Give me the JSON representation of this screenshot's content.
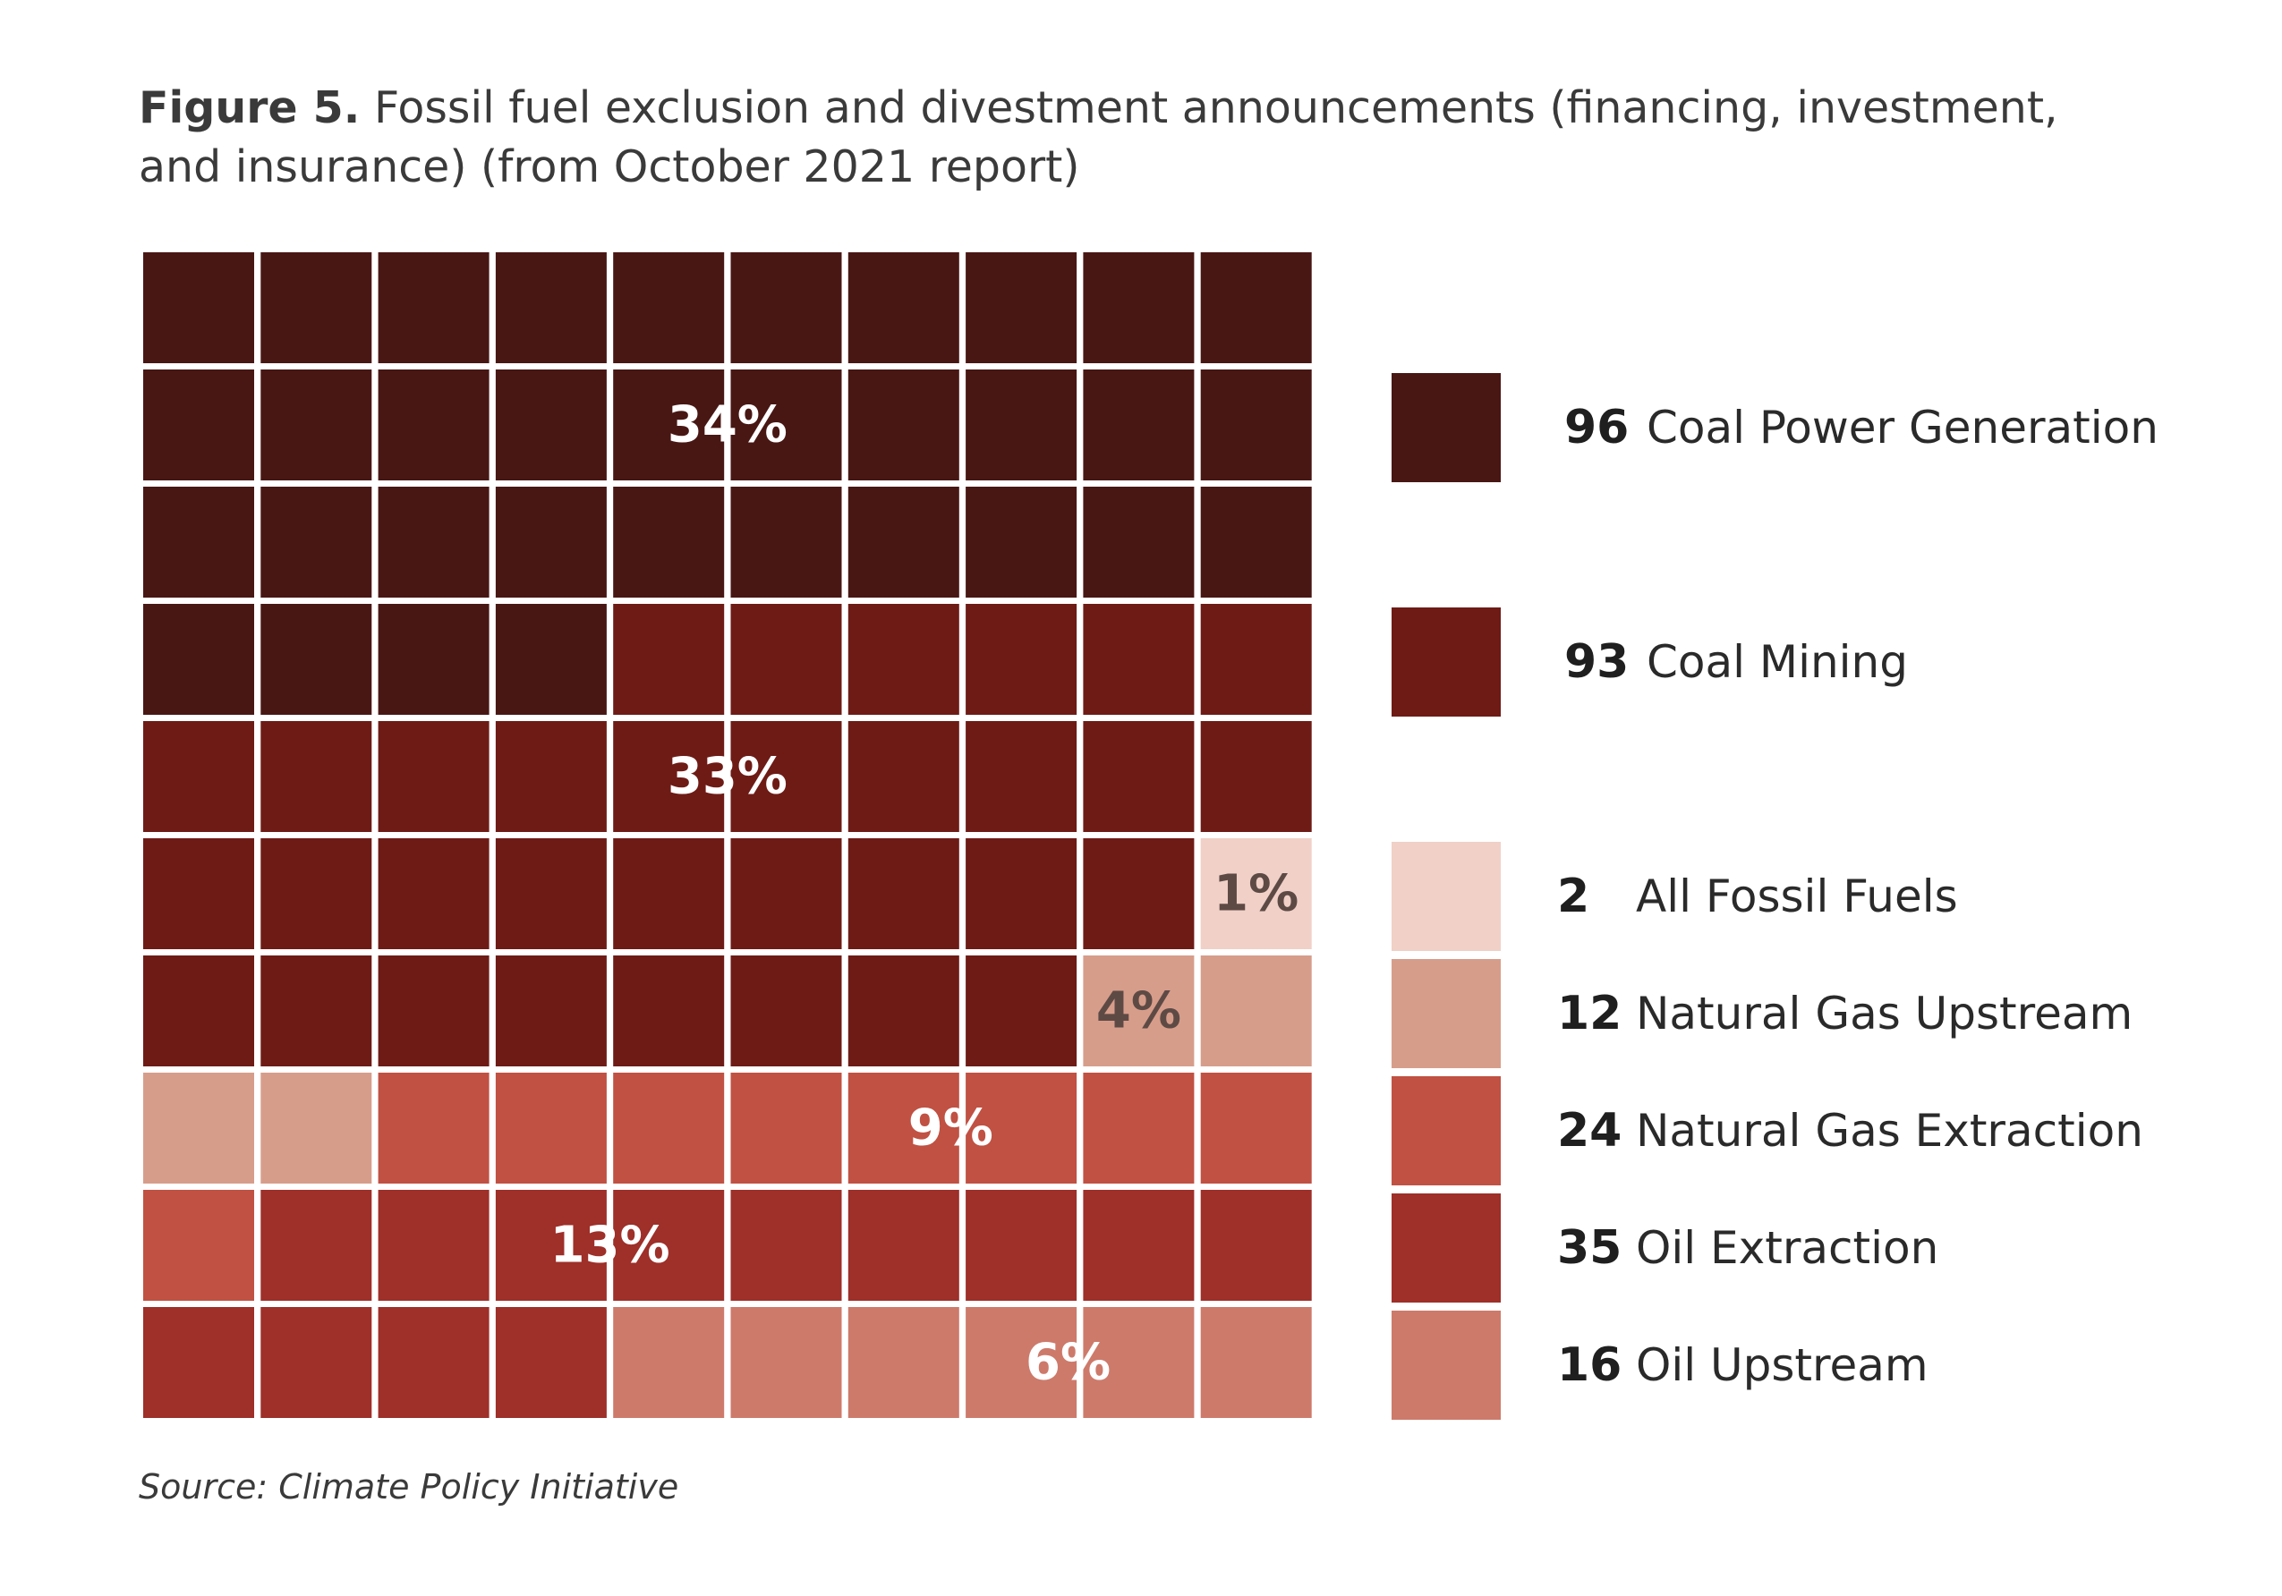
{
  "title": {
    "prefix": "Figure 5.",
    "text": "Fossil fuel exclusion and divestment announcements (financing, investment, and insurance) (from October 2021 report)"
  },
  "source": "Source: Climate Policy Initiative",
  "chart_data": {
    "type": "waffle",
    "grid": {
      "rows": 10,
      "cols": 10
    },
    "categories": [
      {
        "name": "Coal Power Generation",
        "count": "96",
        "cells": 34,
        "percent_label": "34%",
        "color": "#481714"
      },
      {
        "name": "Coal Mining",
        "count": "93",
        "cells": 33,
        "percent_label": "33%",
        "color": "#6e1b16"
      },
      {
        "name": "All Fossil Fuels",
        "count": "2",
        "cells": 1,
        "percent_label": "1%",
        "color": "#f0d0c7"
      },
      {
        "name": "Natural Gas Upstream",
        "count": "12",
        "cells": 4,
        "percent_label": "4%",
        "color": "#d79d8b"
      },
      {
        "name": "Natural Gas Extraction",
        "count": "24",
        "cells": 9,
        "percent_label": "9%",
        "color": "#c05143"
      },
      {
        "name": "Oil Extraction",
        "count": "35",
        "cells": 13,
        "percent_label": "13%",
        "color": "#9e2f29"
      },
      {
        "name": "Oil Upstream",
        "count": "16",
        "cells": 6,
        "percent_label": "6%",
        "color": "#cd7a6b"
      }
    ]
  }
}
